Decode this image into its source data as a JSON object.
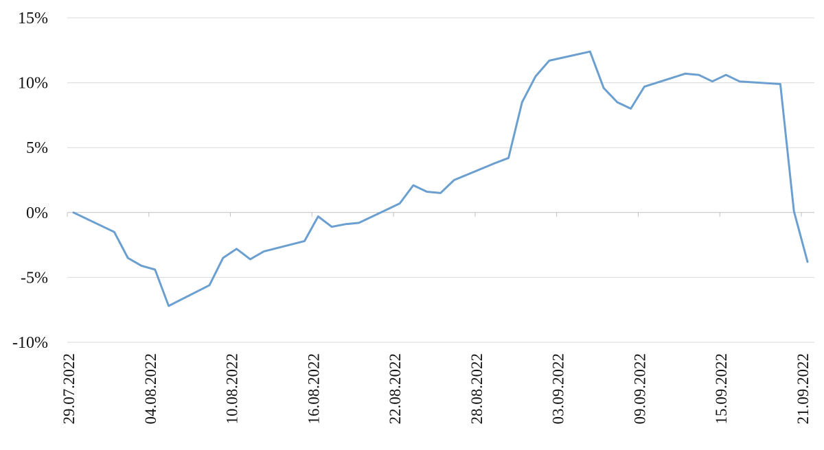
{
  "chart_data": {
    "type": "line",
    "title": "",
    "xlabel": "",
    "ylabel": "",
    "ylim": [
      -10,
      15
    ],
    "y_ticks": [
      15,
      10,
      5,
      0,
      -5,
      -10
    ],
    "y_tick_labels": [
      "15%",
      "10%",
      "5%",
      "0%",
      "-5%",
      "-10%"
    ],
    "xlim": [
      "2022-07-29",
      "2022-09-21"
    ],
    "x_tick_labels": [
      "29.07.2022",
      "04.08.2022",
      "10.08.2022",
      "16.08.2022",
      "22.08.2022",
      "28.08.2022",
      "03.09.2022",
      "09.09.2022",
      "15.09.2022",
      "21.09.2022"
    ],
    "x_tick_dates": [
      "2022-07-29",
      "2022-08-04",
      "2022-08-10",
      "2022-08-16",
      "2022-08-22",
      "2022-08-28",
      "2022-09-03",
      "2022-09-09",
      "2022-09-15",
      "2022-09-21"
    ],
    "grid": "horizontal",
    "legend": "none",
    "line_color": "#6A9FD0",
    "grid_color": "#D9D9D9",
    "axis_color": "#BFBFBF",
    "series": [
      {
        "x": [
          "2022-07-29",
          "2022-08-01",
          "2022-08-02",
          "2022-08-03",
          "2022-08-04",
          "2022-08-05",
          "2022-08-08",
          "2022-08-09",
          "2022-08-10",
          "2022-08-11",
          "2022-08-12",
          "2022-08-15",
          "2022-08-16",
          "2022-08-17",
          "2022-08-18",
          "2022-08-19",
          "2022-08-22",
          "2022-08-23",
          "2022-08-24",
          "2022-08-25",
          "2022-08-26",
          "2022-08-29",
          "2022-08-30",
          "2022-08-31",
          "2022-09-01",
          "2022-09-02",
          "2022-09-05",
          "2022-09-06",
          "2022-09-07",
          "2022-09-08",
          "2022-09-09",
          "2022-09-12",
          "2022-09-13",
          "2022-09-14",
          "2022-09-15",
          "2022-09-16",
          "2022-09-19",
          "2022-09-20",
          "2022-09-21"
        ],
        "values": [
          0.0,
          -1.5,
          -3.5,
          -4.1,
          -4.4,
          -7.2,
          -5.6,
          -3.5,
          -2.8,
          -3.6,
          -3.0,
          -2.2,
          -0.3,
          -1.1,
          -0.9,
          -0.8,
          0.7,
          2.1,
          1.6,
          1.5,
          2.5,
          3.8,
          4.2,
          8.5,
          10.5,
          11.7,
          12.4,
          9.6,
          8.5,
          8.0,
          9.7,
          10.7,
          10.6,
          10.1,
          10.6,
          10.1,
          9.9,
          0.1,
          -3.8
        ]
      }
    ]
  }
}
